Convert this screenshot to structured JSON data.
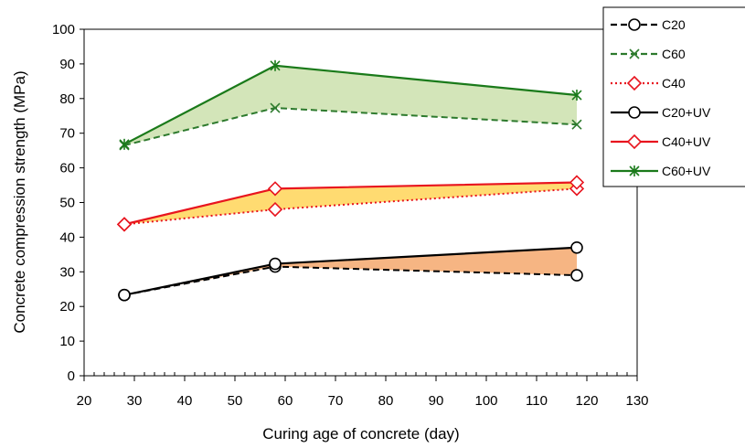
{
  "chart_data": {
    "type": "line",
    "title": "",
    "xlabel": "Curing age of concrete (day)",
    "ylabel": "Concrete compression strength (MPa)",
    "xlim": [
      20,
      130
    ],
    "ylim": [
      0,
      100
    ],
    "xticks": [
      20,
      30,
      40,
      50,
      60,
      70,
      80,
      90,
      100,
      110,
      120,
      130
    ],
    "yticks": [
      0,
      10,
      20,
      30,
      40,
      50,
      60,
      70,
      80,
      90,
      100
    ],
    "grid": false,
    "legend_position": "top-right",
    "x": [
      28,
      58,
      118
    ],
    "series": [
      {
        "name": "C20",
        "values": [
          23.3,
          31.5,
          29.0
        ],
        "color": "#000000",
        "dash": "dashed",
        "marker": "circle"
      },
      {
        "name": "C60",
        "values": [
          66.5,
          77.3,
          72.5
        ],
        "color": "#2d7a2d",
        "dash": "dashed",
        "marker": "x"
      },
      {
        "name": "C40",
        "values": [
          43.7,
          48.0,
          54.0
        ],
        "color": "#e8141e",
        "dash": "dotted",
        "marker": "diamond"
      },
      {
        "name": "C20+UV",
        "values": [
          23.3,
          32.3,
          37.0
        ],
        "color": "#000000",
        "dash": "solid",
        "marker": "circle"
      },
      {
        "name": "C40+UV",
        "values": [
          43.7,
          54.0,
          55.8
        ],
        "color": "#e8141e",
        "dash": "solid",
        "marker": "diamond"
      },
      {
        "name": "C60+UV",
        "values": [
          66.8,
          89.5,
          81.0
        ],
        "color": "#1a7a1a",
        "dash": "solid",
        "marker": "star"
      }
    ],
    "shaded_regions": [
      {
        "between": [
          "C20",
          "C20+UV"
        ],
        "color": "#f4a264"
      },
      {
        "between": [
          "C40",
          "C40+UV"
        ],
        "color": "#ffd24d"
      },
      {
        "between": [
          "C60",
          "C60+UV"
        ],
        "color": "#c8dfa8"
      }
    ]
  }
}
